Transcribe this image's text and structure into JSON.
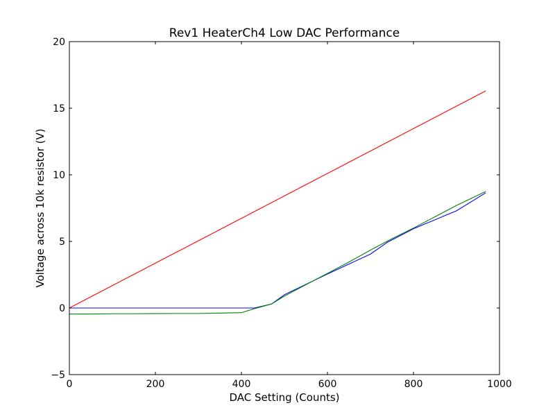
{
  "chart_data": {
    "type": "line",
    "title": "Rev1 HeaterCh4 Low DAC Performance",
    "xlabel": "DAC Setting (Counts)",
    "ylabel": "Voltage across 10k resistor (V)",
    "xlim": [
      0,
      1000
    ],
    "ylim": [
      -5,
      20
    ],
    "xticks": [
      "0",
      "200",
      "400",
      "600",
      "800",
      "1000"
    ],
    "yticks": [
      "−5",
      "0",
      "5",
      "10",
      "15",
      "20"
    ],
    "grid": false,
    "series": [
      {
        "name": "red",
        "color": "#ff0000",
        "x": [
          0,
          968
        ],
        "y": [
          0,
          16.3
        ]
      },
      {
        "name": "blue",
        "color": "#0000ff",
        "x": [
          0,
          100,
          200,
          300,
          400,
          430,
          470,
          500,
          600,
          700,
          740,
          800,
          900,
          968
        ],
        "y": [
          0,
          0,
          0,
          0,
          0,
          0,
          0.3,
          1.0,
          2.55,
          4.05,
          4.95,
          5.95,
          7.3,
          8.65
        ]
      },
      {
        "name": "green",
        "color": "#008000",
        "x": [
          0,
          50,
          100,
          150,
          200,
          250,
          300,
          350,
          400,
          430,
          470,
          500,
          550,
          600,
          650,
          700,
          750,
          800,
          850,
          900,
          968
        ],
        "y": [
          -0.45,
          -0.45,
          -0.43,
          -0.43,
          -0.42,
          -0.41,
          -0.41,
          -0.38,
          -0.35,
          -0.05,
          0.3,
          0.9,
          1.75,
          2.6,
          3.45,
          4.35,
          5.2,
          6.0,
          6.85,
          7.7,
          8.75
        ]
      }
    ]
  }
}
